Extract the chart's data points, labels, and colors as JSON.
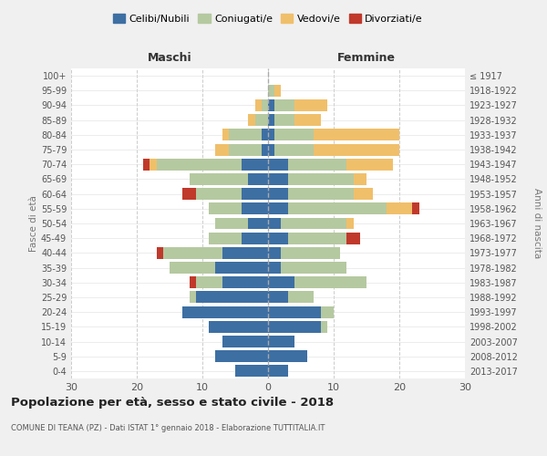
{
  "age_groups": [
    "0-4",
    "5-9",
    "10-14",
    "15-19",
    "20-24",
    "25-29",
    "30-34",
    "35-39",
    "40-44",
    "45-49",
    "50-54",
    "55-59",
    "60-64",
    "65-69",
    "70-74",
    "75-79",
    "80-84",
    "85-89",
    "90-94",
    "95-99",
    "100+"
  ],
  "birth_years": [
    "2013-2017",
    "2008-2012",
    "2003-2007",
    "1998-2002",
    "1993-1997",
    "1988-1992",
    "1983-1987",
    "1978-1982",
    "1973-1977",
    "1968-1972",
    "1963-1967",
    "1958-1962",
    "1953-1957",
    "1948-1952",
    "1943-1947",
    "1938-1942",
    "1933-1937",
    "1928-1932",
    "1923-1927",
    "1918-1922",
    "≤ 1917"
  ],
  "colors": {
    "celibe": "#3d6fa3",
    "coniugato": "#b5c9a0",
    "vedovo": "#f0bf6a",
    "divorziato": "#c0392b"
  },
  "maschi": {
    "celibe": [
      5,
      8,
      7,
      9,
      13,
      11,
      7,
      8,
      7,
      4,
      3,
      4,
      4,
      3,
      4,
      1,
      1,
      0,
      0,
      0,
      0
    ],
    "coniugato": [
      0,
      0,
      0,
      0,
      0,
      1,
      4,
      7,
      9,
      5,
      5,
      5,
      7,
      9,
      13,
      5,
      5,
      2,
      1,
      0,
      0
    ],
    "vedovo": [
      0,
      0,
      0,
      0,
      0,
      0,
      0,
      0,
      0,
      0,
      0,
      0,
      0,
      0,
      1,
      2,
      1,
      1,
      1,
      0,
      0
    ],
    "divorziato": [
      0,
      0,
      0,
      0,
      0,
      0,
      1,
      0,
      1,
      0,
      0,
      0,
      2,
      0,
      1,
      0,
      0,
      0,
      0,
      0,
      0
    ]
  },
  "femmine": {
    "nubile": [
      3,
      6,
      4,
      8,
      8,
      3,
      4,
      2,
      2,
      3,
      2,
      3,
      3,
      3,
      3,
      1,
      1,
      1,
      1,
      0,
      0
    ],
    "coniugata": [
      0,
      0,
      0,
      1,
      2,
      4,
      11,
      10,
      9,
      9,
      10,
      15,
      10,
      10,
      9,
      6,
      6,
      3,
      3,
      1,
      0
    ],
    "vedova": [
      0,
      0,
      0,
      0,
      0,
      0,
      0,
      0,
      0,
      0,
      1,
      4,
      3,
      2,
      7,
      13,
      13,
      4,
      5,
      1,
      0
    ],
    "divorziata": [
      0,
      0,
      0,
      0,
      0,
      0,
      0,
      0,
      0,
      2,
      0,
      1,
      0,
      0,
      0,
      0,
      0,
      0,
      0,
      0,
      0
    ]
  },
  "title": "Popolazione per età, sesso e stato civile - 2018",
  "subtitle": "COMUNE DI TEANA (PZ) - Dati ISTAT 1° gennaio 2018 - Elaborazione TUTTITALIA.IT",
  "ylabel_left": "Fasce di età",
  "ylabel_right": "Anni di nascita",
  "xlabel_maschi": "Maschi",
  "xlabel_femmine": "Femmine",
  "xlim": 30,
  "background_color": "#f0f0f0",
  "plot_bg": "#ffffff",
  "legend_labels": [
    "Celibi/Nubili",
    "Coniugati/e",
    "Vedovi/e",
    "Divorziati/e"
  ]
}
